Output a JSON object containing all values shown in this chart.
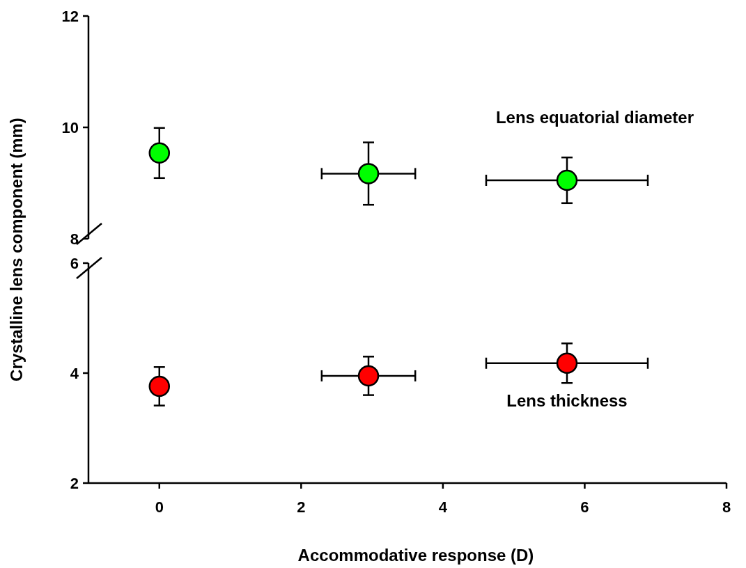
{
  "chart_data": [
    {
      "type": "scatter",
      "ylabel": "Crystalline lens component (mm)",
      "x": [
        0,
        2.95,
        5.75
      ],
      "xlim": [
        -1,
        8
      ],
      "ylim": [
        8,
        12
      ],
      "yticks": [
        8,
        10,
        12
      ],
      "tick_labels": "y",
      "marker": "circle",
      "grid": false,
      "series": [
        {
          "name": "Lens equatorial diameter",
          "color": "#00ff00",
          "values": [
            9.54,
            9.17,
            9.05
          ],
          "errors": [
            0.45,
            0.56,
            0.41
          ],
          "xerrors": [
            null,
            0.66,
            1.14
          ]
        }
      ]
    },
    {
      "type": "scatter",
      "xlabel": "Accommodative response (D)",
      "x": [
        0,
        2.95,
        5.75
      ],
      "xlim": [
        -1,
        8
      ],
      "xticks": [
        0,
        2,
        4,
        6,
        8
      ],
      "ylim": [
        2,
        6
      ],
      "yticks": [
        2,
        4,
        6
      ],
      "marker": "circle",
      "grid": false,
      "series": [
        {
          "name": "Lens thickness",
          "color": "#ff0000",
          "values": [
            3.76,
            3.95,
            4.18
          ],
          "errors": [
            0.35,
            0.35,
            0.36
          ],
          "xerrors": [
            null,
            0.66,
            1.14
          ]
        }
      ]
    }
  ]
}
